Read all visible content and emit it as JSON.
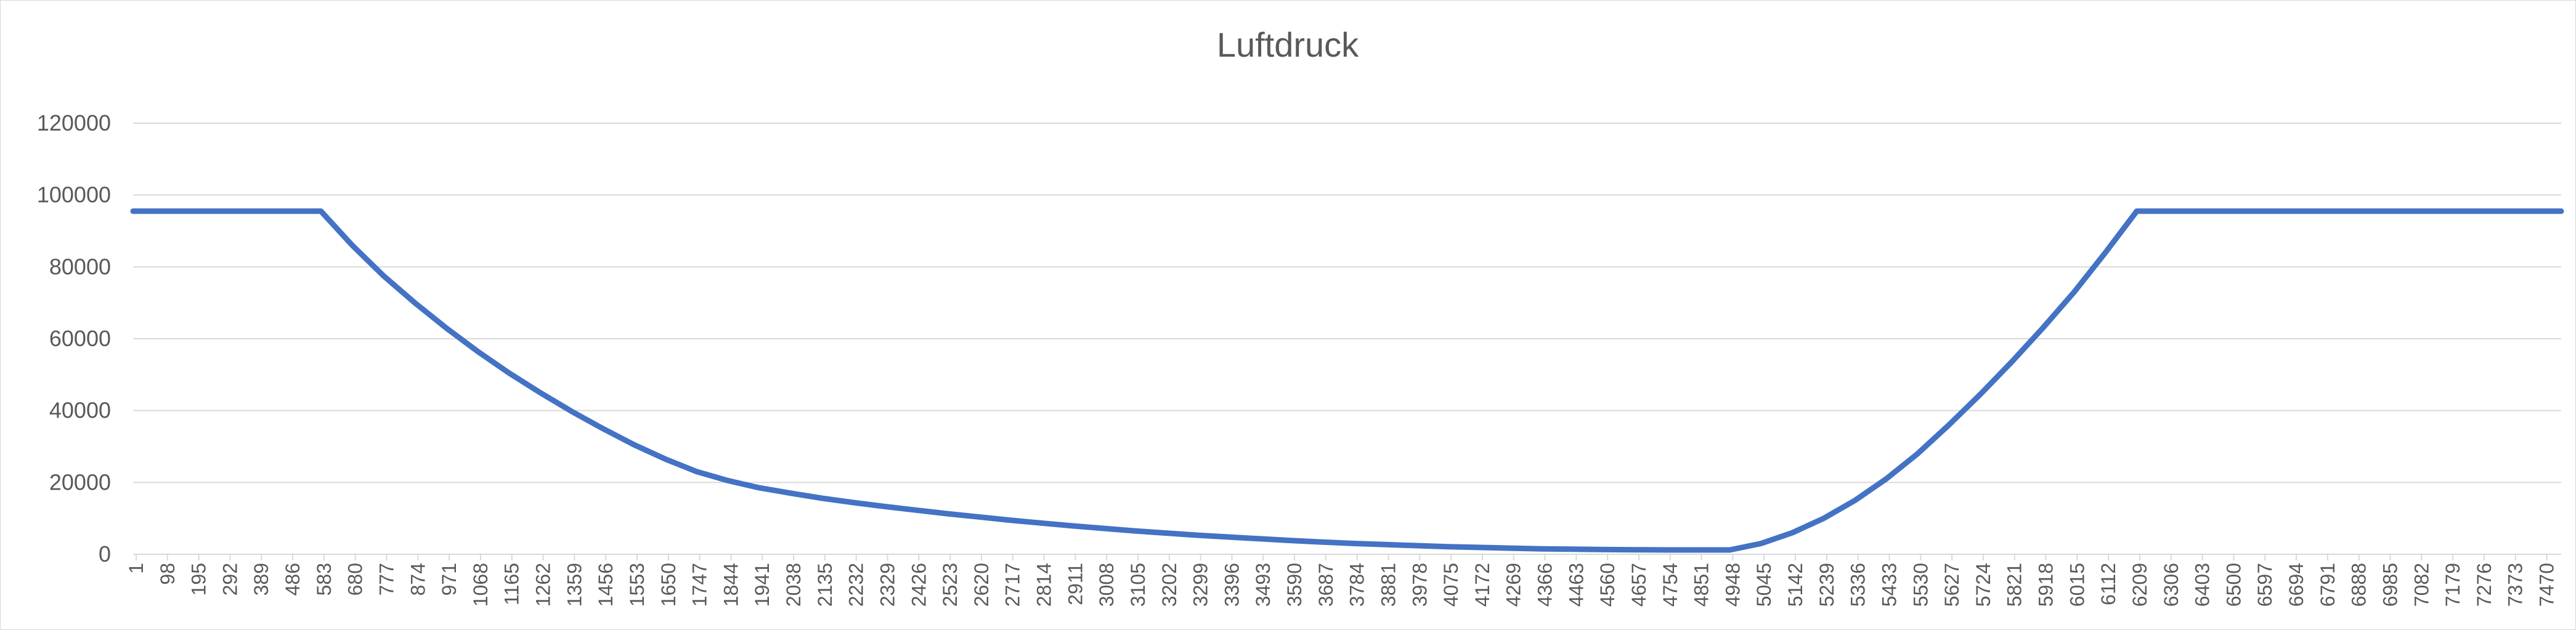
{
  "chart_data": {
    "type": "line",
    "title": "Luftdruck",
    "xlabel": "",
    "ylabel": "",
    "ylim": [
      0,
      120000
    ],
    "y_ticks": [
      0,
      20000,
      40000,
      60000,
      80000,
      100000,
      120000
    ],
    "y_tick_labels": [
      "0",
      "20000",
      "40000",
      "60000",
      "80000",
      "100000",
      "120000"
    ],
    "grid": true,
    "legend": "none",
    "x_range": [
      1,
      7524
    ],
    "x_tick_labels": [
      "1",
      "98",
      "195",
      "292",
      "389",
      "486",
      "583",
      "680",
      "777",
      "874",
      "971",
      "1068",
      "1165",
      "1262",
      "1359",
      "1456",
      "1553",
      "1650",
      "1747",
      "1844",
      "1941",
      "2038",
      "2135",
      "2232",
      "2329",
      "2426",
      "2523",
      "2620",
      "2717",
      "2814",
      "2911",
      "3008",
      "3105",
      "3202",
      "3299",
      "3396",
      "3493",
      "3590",
      "3687",
      "3784",
      "3881",
      "3978",
      "4075",
      "4172",
      "4269",
      "4366",
      "4463",
      "4560",
      "4657",
      "4754",
      "4851",
      "4948",
      "5045",
      "5142",
      "5239",
      "5336",
      "5433",
      "5530",
      "5627",
      "5724",
      "5821",
      "5918",
      "6015",
      "6112",
      "6209",
      "6306",
      "6403",
      "6500",
      "6597",
      "6694",
      "6791",
      "6888",
      "6985",
      "7082",
      "7179",
      "7276",
      "7373",
      "7470"
    ],
    "series": [
      {
        "color": "#4472c4",
        "x": [
          1,
          98,
          195,
          292,
          389,
          486,
          583,
          680,
          777,
          874,
          971,
          1068,
          1165,
          1262,
          1359,
          1456,
          1553,
          1650,
          1747,
          1844,
          1941,
          2038,
          2135,
          2232,
          2329,
          2426,
          2523,
          2620,
          2717,
          2814,
          2911,
          3008,
          3105,
          3202,
          3299,
          3396,
          3493,
          3590,
          3687,
          3784,
          3881,
          3978,
          4075,
          4172,
          4269,
          4366,
          4463,
          4560,
          4657,
          4754,
          4851,
          4948,
          5045,
          5142,
          5239,
          5336,
          5433,
          5530,
          5627,
          5724,
          5821,
          5918,
          6015,
          6112,
          6209,
          6306,
          6350,
          6403,
          6500,
          6597,
          6694,
          6791,
          6888,
          6985,
          7082,
          7179,
          7276,
          7373,
          7470,
          7524
        ],
        "y": [
          95500,
          95500,
          95500,
          95500,
          95500,
          95500,
          95500,
          86000,
          77500,
          70000,
          63000,
          56500,
          50500,
          45000,
          39800,
          35000,
          30500,
          26500,
          23000,
          20500,
          18500,
          17000,
          15600,
          14400,
          13300,
          12300,
          11300,
          10400,
          9500,
          8700,
          7900,
          7200,
          6500,
          5900,
          5300,
          4800,
          4300,
          3800,
          3400,
          3000,
          2700,
          2400,
          2100,
          1900,
          1700,
          1500,
          1400,
          1300,
          1250,
          1200,
          1200,
          1200,
          3000,
          6000,
          10000,
          15000,
          21000,
          28000,
          36000,
          44500,
          53500,
          63000,
          73000,
          84000,
          95500,
          95500,
          95500,
          95500,
          95500,
          95500,
          95500,
          95500,
          95500,
          95500,
          95500,
          95500,
          95500,
          95500,
          95500,
          95500
        ]
      }
    ]
  }
}
